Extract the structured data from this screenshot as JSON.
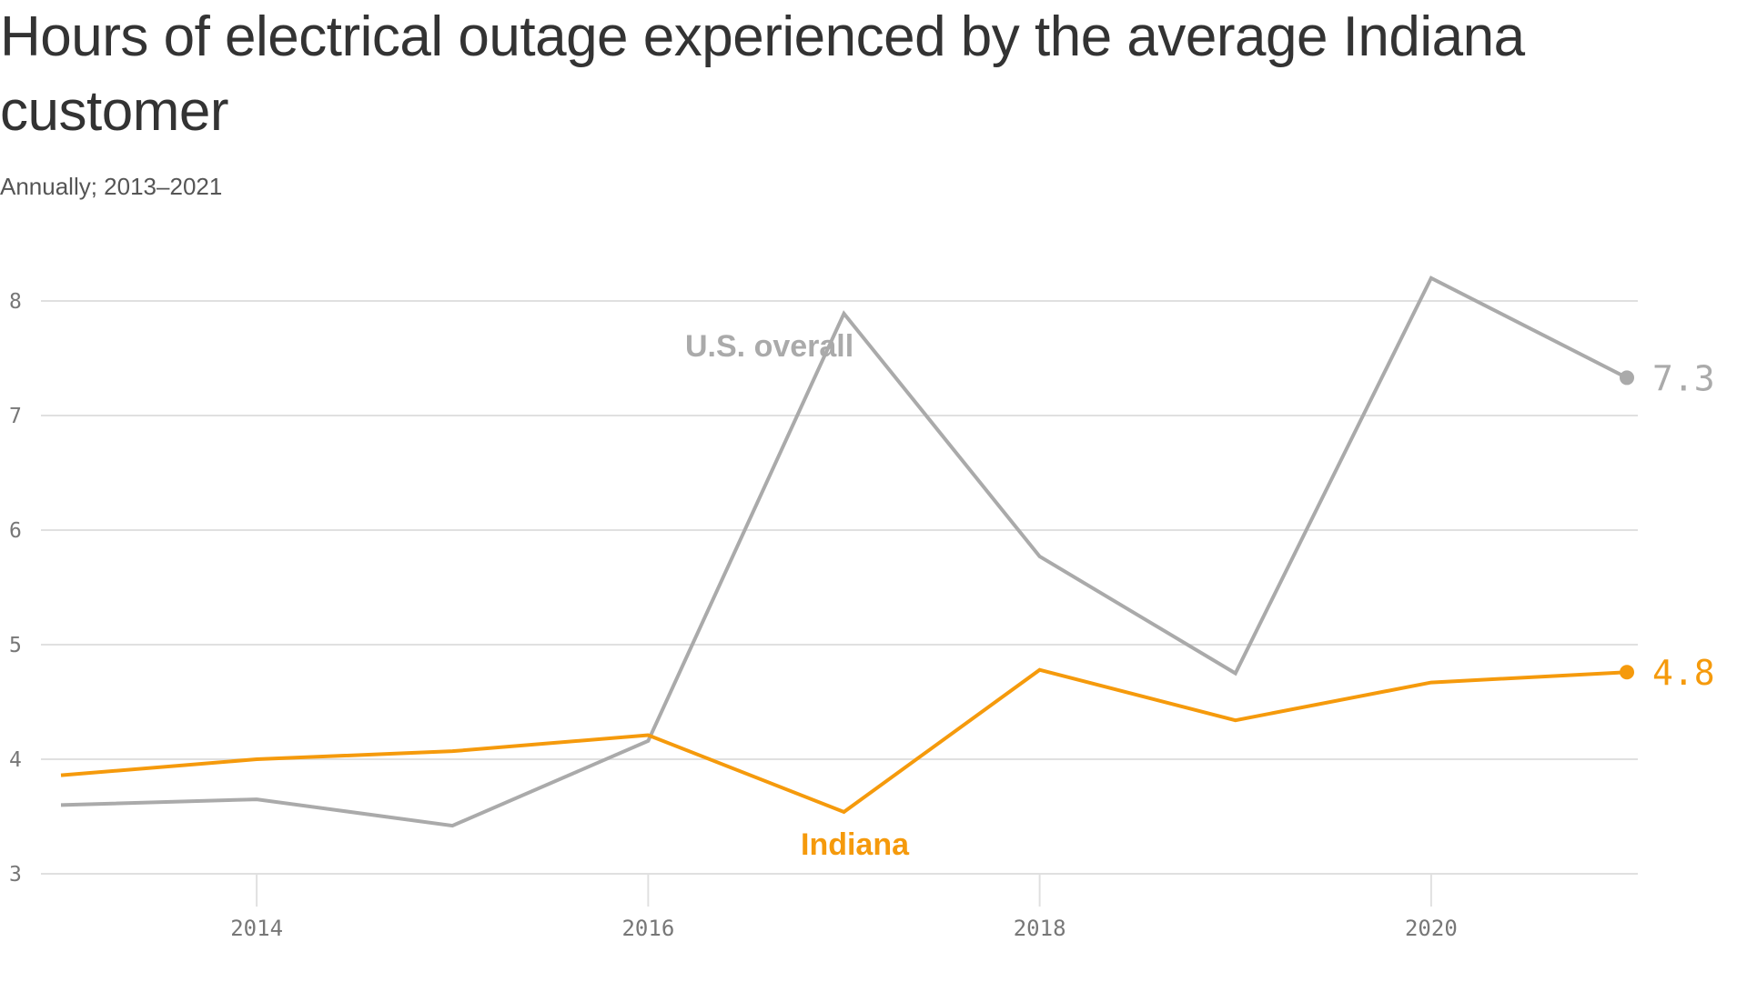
{
  "title": "Hours of electrical outage experienced by the average Indiana customer",
  "subtitle": "Annually; 2013–2021",
  "colors": {
    "us": "#aaaaaa",
    "indiana": "#f59a0c",
    "grid": "#e0e0e0",
    "text": "#333333"
  },
  "chart_data": {
    "type": "line",
    "title": "Hours of electrical outage experienced by the average Indiana customer",
    "subtitle": "Annually; 2013–2021",
    "x": [
      2013,
      2014,
      2015,
      2016,
      2017,
      2018,
      2019,
      2020,
      2021
    ],
    "x_ticks": [
      2014,
      2016,
      2018,
      2020
    ],
    "y_ticks": [
      3,
      4,
      5,
      6,
      7,
      8
    ],
    "ylim": [
      3,
      8.3
    ],
    "xlim": [
      2013,
      2021
    ],
    "grid": true,
    "series": [
      {
        "name": "U.S. overall",
        "values": [
          3.6,
          3.65,
          3.42,
          4.16,
          7.89,
          5.77,
          4.75,
          8.2,
          7.33
        ],
        "end_label": "7.3"
      },
      {
        "name": "Indiana",
        "values": [
          3.86,
          4.0,
          4.07,
          4.21,
          3.54,
          4.78,
          4.34,
          4.67,
          4.76
        ],
        "end_label": "4.8"
      }
    ]
  }
}
